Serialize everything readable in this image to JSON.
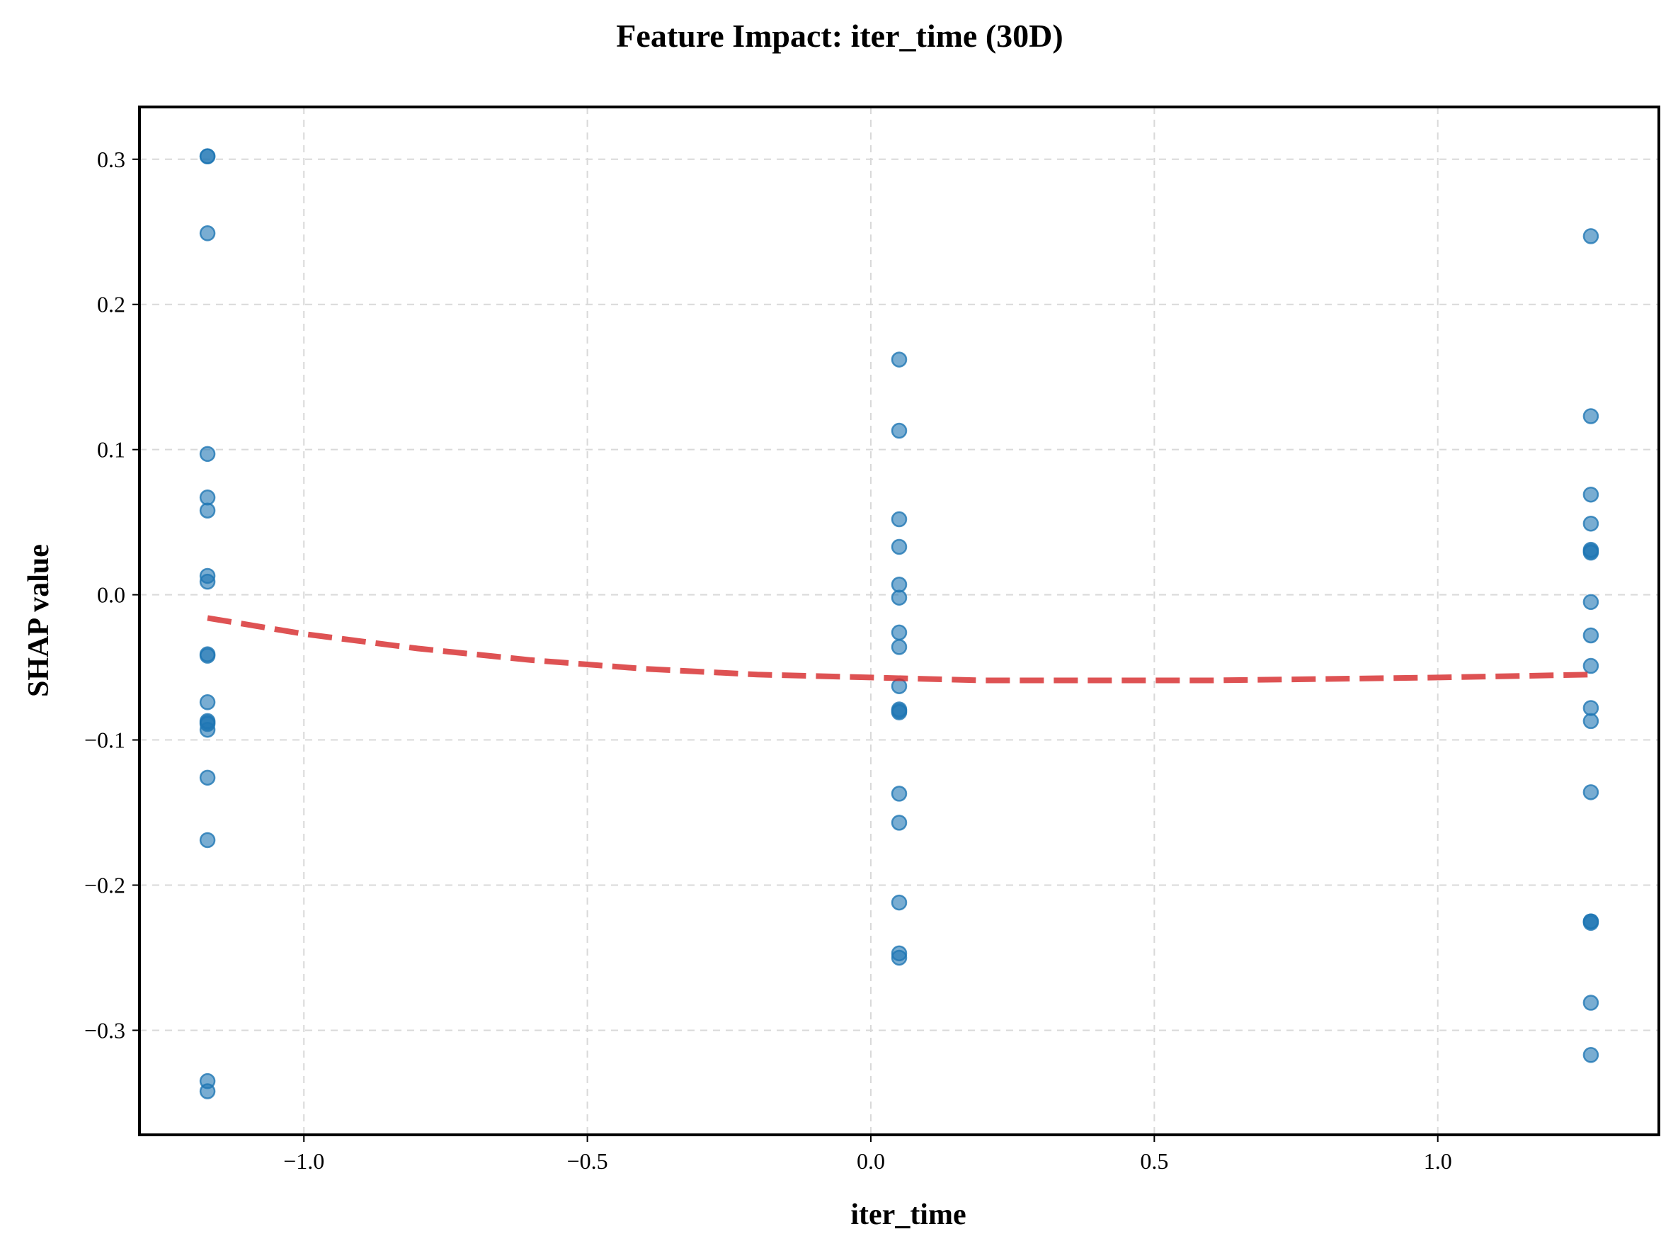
{
  "chart_data": {
    "type": "scatter",
    "title": "Feature Impact: iter_time (30D)",
    "xlabel": "iter_time",
    "ylabel": "SHAP value",
    "xlim": [
      -1.29,
      1.39
    ],
    "ylim": [
      -0.372,
      0.336
    ],
    "xticks": [
      -1.0,
      -0.5,
      0.0,
      0.5,
      1.0
    ],
    "xtick_labels": [
      "−1.0",
      "−0.5",
      "0.0",
      "0.5",
      "1.0"
    ],
    "yticks": [
      -0.3,
      -0.2,
      -0.1,
      0.0,
      0.1,
      0.2,
      0.3
    ],
    "ytick_labels": [
      "−0.3",
      "−0.2",
      "−0.1",
      "0.0",
      "0.1",
      "0.2",
      "0.3"
    ],
    "grid": true,
    "colors": {
      "points": "#1f77b4",
      "trend": "#d62728"
    },
    "series": [
      {
        "kind": "scatter",
        "x": [
          -1.17,
          -1.17,
          -1.17,
          -1.17,
          -1.17,
          -1.17,
          -1.17,
          -1.17,
          -1.17,
          -1.17,
          -1.17,
          -1.17,
          -1.17,
          -1.17,
          -1.17,
          -1.17,
          -1.17,
          -1.17,
          -1.17,
          0.05,
          0.05,
          0.05,
          0.05,
          0.05,
          0.05,
          0.05,
          0.05,
          0.05,
          0.05,
          0.05,
          0.05,
          0.05,
          0.05,
          0.05,
          0.05,
          0.05,
          1.27,
          1.27,
          1.27,
          1.27,
          1.27,
          1.27,
          1.27,
          1.27,
          1.27,
          1.27,
          1.27,
          1.27,
          1.27,
          1.27,
          1.27,
          1.27,
          1.27,
          1.27
        ],
        "y": [
          0.302,
          0.302,
          0.249,
          0.097,
          0.067,
          0.058,
          0.013,
          0.009,
          -0.041,
          -0.042,
          -0.074,
          -0.087,
          -0.089,
          -0.093,
          -0.126,
          -0.169,
          -0.335,
          -0.342,
          -0.088,
          0.162,
          0.113,
          0.052,
          0.033,
          0.007,
          -0.002,
          -0.026,
          -0.036,
          -0.063,
          -0.079,
          -0.081,
          -0.137,
          -0.157,
          -0.212,
          -0.247,
          -0.25,
          -0.08,
          0.247,
          0.123,
          0.069,
          0.049,
          0.03,
          0.029,
          -0.005,
          -0.028,
          -0.049,
          -0.078,
          -0.087,
          -0.136,
          -0.225,
          -0.226,
          -0.281,
          -0.317,
          0.031,
          -0.225
        ]
      },
      {
        "kind": "line",
        "style": "dashed",
        "x": [
          -1.17,
          -1.0,
          -0.8,
          -0.6,
          -0.4,
          -0.2,
          0.0,
          0.2,
          0.4,
          0.6,
          0.8,
          1.0,
          1.27
        ],
        "y": [
          -0.016,
          -0.027,
          -0.037,
          -0.045,
          -0.051,
          -0.055,
          -0.057,
          -0.059,
          -0.059,
          -0.059,
          -0.058,
          -0.057,
          -0.055
        ]
      }
    ]
  }
}
